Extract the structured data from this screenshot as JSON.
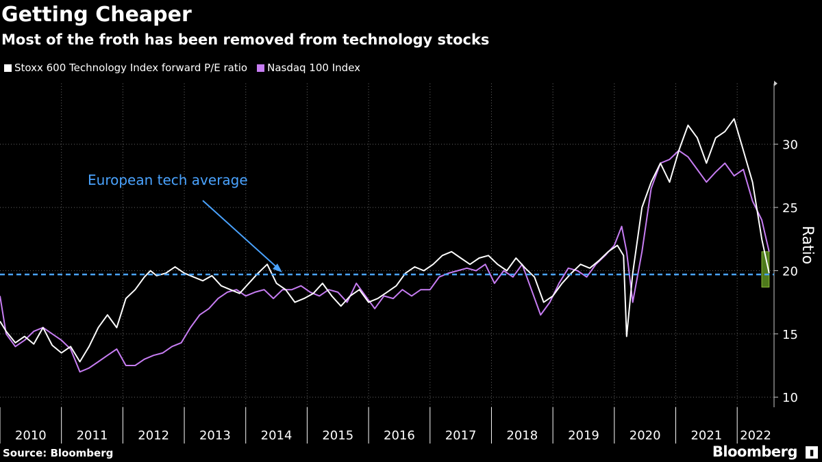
{
  "title": "Getting Cheaper",
  "subtitle": "Most of the froth has been removed from technology stocks",
  "legend": [
    {
      "label": "Stoxx 600 Technology Index forward P/E ratio",
      "color": "#ffffff"
    },
    {
      "label": "Nasdaq 100 Index",
      "color": "#c77df3"
    }
  ],
  "source": "Source: Bloomberg",
  "brand": "Bloomberg",
  "annotation": "European tech average",
  "chart_data": {
    "type": "line",
    "ylabel": "Ratio",
    "ylim": [
      9.2,
      34.8
    ],
    "yticks": [
      10,
      15,
      20,
      25,
      30
    ],
    "xlim": [
      2010.0,
      2022.6
    ],
    "xtick_labels": [
      "2010",
      "2011",
      "2012",
      "2013",
      "2014",
      "2015",
      "2016",
      "2017",
      "2018",
      "2019",
      "2020",
      "2021",
      "2022"
    ],
    "reference_line": {
      "value": 19.7,
      "color": "#4aa3ff",
      "style": "dashed"
    },
    "highlight": {
      "x": [
        2022.4,
        2022.52
      ],
      "y": [
        18.7,
        21.5
      ],
      "color": "#4e7a1c"
    },
    "grid": true,
    "series": [
      {
        "name": "Stoxx 600 Technology Index forward P/E ratio",
        "color": "#ffffff",
        "x": [
          2010.0,
          2010.1,
          2010.25,
          2010.4,
          2010.55,
          2010.7,
          2010.85,
          2011.0,
          2011.15,
          2011.3,
          2011.45,
          2011.6,
          2011.75,
          2011.9,
          2012.05,
          2012.2,
          2012.35,
          2012.45,
          2012.55,
          2012.7,
          2012.85,
          2013.0,
          2013.15,
          2013.3,
          2013.45,
          2013.6,
          2013.75,
          2013.9,
          2014.05,
          2014.2,
          2014.35,
          2014.5,
          2014.65,
          2014.8,
          2014.95,
          2015.1,
          2015.25,
          2015.4,
          2015.55,
          2015.7,
          2015.85,
          2016.0,
          2016.15,
          2016.3,
          2016.45,
          2016.6,
          2016.75,
          2016.9,
          2017.05,
          2017.2,
          2017.35,
          2017.5,
          2017.65,
          2017.8,
          2017.95,
          2018.1,
          2018.25,
          2018.4,
          2018.55,
          2018.7,
          2018.85,
          2019.0,
          2019.15,
          2019.3,
          2019.45,
          2019.6,
          2019.75,
          2019.9,
          2020.05,
          2020.15,
          2020.2,
          2020.3,
          2020.45,
          2020.6,
          2020.75,
          2020.9,
          2021.05,
          2021.2,
          2021.35,
          2021.5,
          2021.65,
          2021.8,
          2021.95,
          2022.1,
          2022.25,
          2022.4,
          2022.52
        ],
        "y": [
          16.0,
          15.2,
          14.3,
          14.8,
          14.2,
          15.5,
          14.1,
          13.5,
          14.0,
          12.8,
          14.0,
          15.5,
          16.5,
          15.5,
          17.8,
          18.5,
          19.5,
          20.0,
          19.6,
          19.8,
          20.3,
          19.8,
          19.5,
          19.2,
          19.6,
          18.8,
          18.5,
          18.2,
          19.0,
          19.8,
          20.5,
          19.0,
          18.5,
          17.5,
          17.8,
          18.2,
          19.0,
          18.0,
          17.2,
          18.0,
          18.5,
          17.5,
          17.8,
          18.3,
          18.8,
          19.8,
          20.3,
          20.0,
          20.5,
          21.2,
          21.5,
          21.0,
          20.5,
          21.0,
          21.2,
          20.5,
          20.0,
          21.0,
          20.2,
          19.5,
          17.5,
          18.0,
          19.0,
          19.8,
          20.5,
          20.2,
          20.8,
          21.5,
          22.0,
          21.2,
          14.8,
          19.8,
          25.0,
          27.0,
          28.5,
          27.0,
          29.5,
          31.5,
          30.5,
          28.5,
          30.5,
          31.0,
          32.0,
          29.5,
          27.0,
          22.5,
          19.8
        ]
      },
      {
        "name": "Nasdaq 100 Index",
        "color": "#c77df3",
        "x": [
          2010.0,
          2010.1,
          2010.25,
          2010.4,
          2010.55,
          2010.7,
          2010.85,
          2011.0,
          2011.15,
          2011.3,
          2011.45,
          2011.6,
          2011.75,
          2011.9,
          2012.05,
          2012.2,
          2012.35,
          2012.5,
          2012.65,
          2012.8,
          2012.95,
          2013.1,
          2013.25,
          2013.4,
          2013.55,
          2013.7,
          2013.85,
          2014.0,
          2014.15,
          2014.3,
          2014.45,
          2014.6,
          2014.75,
          2014.9,
          2015.05,
          2015.2,
          2015.35,
          2015.5,
          2015.65,
          2015.8,
          2015.95,
          2016.1,
          2016.25,
          2016.4,
          2016.55,
          2016.7,
          2016.85,
          2017.0,
          2017.15,
          2017.3,
          2017.45,
          2017.6,
          2017.75,
          2017.9,
          2018.05,
          2018.2,
          2018.35,
          2018.5,
          2018.65,
          2018.8,
          2018.95,
          2019.1,
          2019.25,
          2019.4,
          2019.55,
          2019.7,
          2019.85,
          2020.0,
          2020.12,
          2020.2,
          2020.3,
          2020.45,
          2020.6,
          2020.75,
          2020.9,
          2021.05,
          2021.2,
          2021.35,
          2021.5,
          2021.65,
          2021.8,
          2021.95,
          2022.1,
          2022.25,
          2022.4,
          2022.52
        ],
        "y": [
          18.0,
          15.0,
          14.0,
          14.5,
          15.2,
          15.5,
          15.0,
          14.5,
          13.8,
          12.0,
          12.3,
          12.8,
          13.3,
          13.8,
          12.5,
          12.5,
          13.0,
          13.3,
          13.5,
          14.0,
          14.3,
          15.5,
          16.5,
          17.0,
          17.8,
          18.3,
          18.5,
          18.0,
          18.3,
          18.5,
          17.8,
          18.5,
          18.5,
          18.8,
          18.3,
          18.0,
          18.5,
          18.3,
          17.5,
          19.0,
          18.0,
          17.0,
          18.0,
          17.8,
          18.5,
          18.0,
          18.5,
          18.5,
          19.5,
          19.8,
          20.0,
          20.2,
          20.0,
          20.5,
          19.0,
          20.0,
          19.5,
          20.5,
          18.5,
          16.5,
          17.5,
          19.0,
          20.2,
          20.0,
          19.5,
          20.5,
          21.2,
          22.0,
          23.5,
          21.5,
          17.5,
          21.5,
          26.5,
          28.5,
          28.8,
          29.5,
          29.0,
          28.0,
          27.0,
          27.8,
          28.5,
          27.5,
          28.0,
          25.5,
          24.0,
          21.5
        ]
      }
    ]
  }
}
